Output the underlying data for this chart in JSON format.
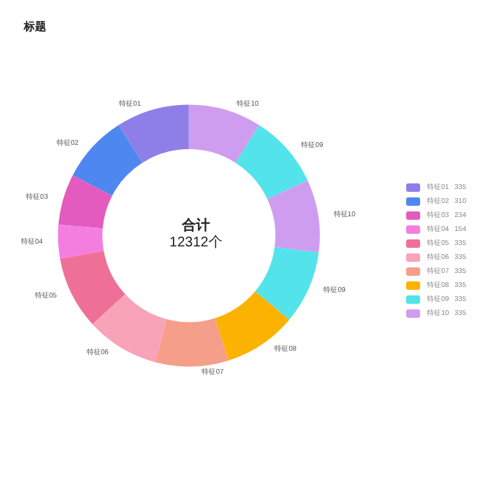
{
  "chart_data": {
    "type": "donut",
    "title": "标题",
    "categories": [
      "特征01",
      "特征02",
      "特征03",
      "特征04",
      "特征05",
      "特征06",
      "特征07",
      "特征08",
      "特征09",
      "特征10",
      "特征09",
      "特征10"
    ],
    "values": [
      335,
      310,
      234,
      154,
      335,
      335,
      335,
      335,
      335,
      335,
      335,
      335
    ],
    "colors": [
      "#8e7fe8",
      "#4f87f0",
      "#e35bbf",
      "#f47ee0",
      "#ef7097",
      "#f9a3b9",
      "#f59e8a",
      "#fcb200",
      "#53e3ea",
      "#cf9df0",
      "#53e3ea",
      "#cf9df0"
    ],
    "value_labels": [
      "335",
      "310",
      "234",
      "154",
      "335",
      "335",
      "335",
      "335",
      "335",
      "335",
      null,
      null
    ],
    "annotations": [
      "合计",
      "12312个"
    ],
    "legend": "right"
  }
}
